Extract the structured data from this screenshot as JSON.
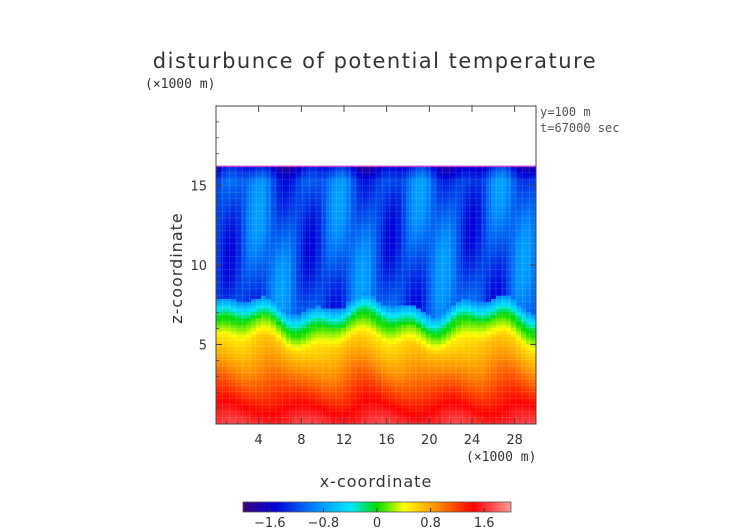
{
  "chart_data": {
    "type": "heatmap",
    "title": "disturbunce of potential temperature",
    "xlabel": "x-coordinate",
    "ylabel": "z-coordinate",
    "x_unit": "(×1000 m)",
    "y_unit": "(×1000 m)",
    "xlim": [
      0,
      30
    ],
    "ylim": [
      0,
      20
    ],
    "x_ticks": [
      4,
      8,
      12,
      16,
      20,
      24,
      28
    ],
    "y_ticks": [
      5,
      10,
      15
    ],
    "annotations": [
      "y=100 m",
      "t=67000 sec"
    ],
    "colorbar": {
      "range": [
        -2.0,
        2.0
      ],
      "ticks": [
        -1.6,
        -0.8,
        0,
        0.8,
        1.6
      ],
      "tick_labels": [
        "−1.6",
        "−0.8",
        "0",
        "0.8",
        "1.6"
      ],
      "colors": [
        "#3b007a",
        "#0000d8",
        "#0090ff",
        "#00e8ff",
        "#00dc00",
        "#ffff00",
        "#ff9000",
        "#ff0000",
        "#ff8888"
      ]
    },
    "field_summary": {
      "top_of_data": 16.2,
      "upper_value": -1.2,
      "transition_z": 6.3,
      "surface_value": 1.7,
      "grid": "on"
    }
  }
}
